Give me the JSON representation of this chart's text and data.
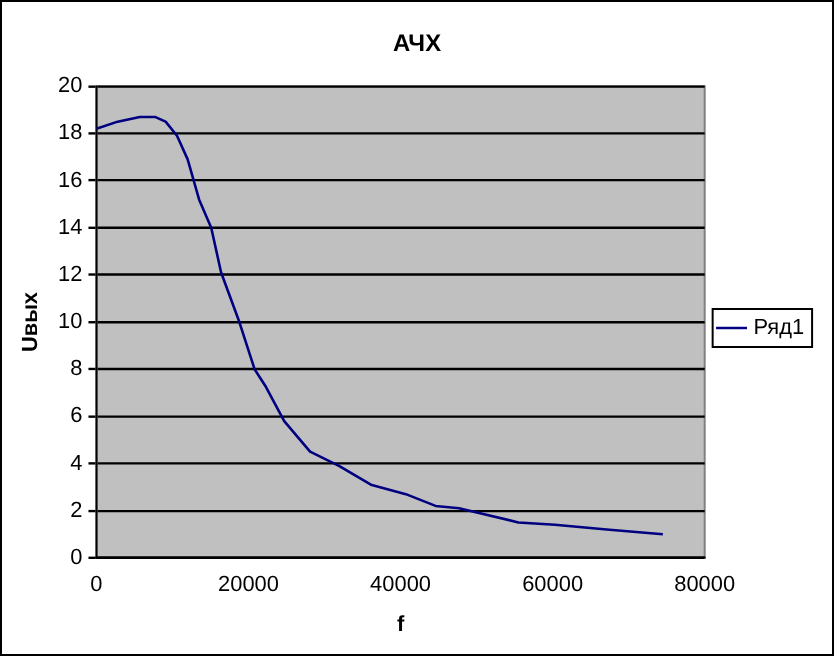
{
  "chart_data": {
    "type": "line",
    "title": "АЧХ",
    "xlabel": "f",
    "ylabel": "Uвых",
    "xlim": [
      0,
      80000
    ],
    "xticks": [
      0,
      20000,
      40000,
      60000,
      80000
    ],
    "ylim": [
      0,
      20
    ],
    "yticks": [
      0,
      2,
      4,
      6,
      8,
      10,
      12,
      14,
      16,
      18,
      20
    ],
    "grid": "y",
    "legend": "right",
    "marker": "none",
    "line_style": "solid",
    "series": [
      {
        "name": "Ряд1",
        "color": "#000080",
        "x": [
          0,
          2800,
          5700,
          7700,
          9100,
          10600,
          12000,
          13500,
          15100,
          16400,
          18800,
          20800,
          22200,
          24700,
          28100,
          31900,
          36100,
          40700,
          44600,
          47700,
          55500,
          60300,
          67100,
          74500
        ],
        "values": [
          18.2,
          18.5,
          18.7,
          18.7,
          18.5,
          17.9,
          16.9,
          15.2,
          14.0,
          12.1,
          10.0,
          8.0,
          7.3,
          5.8,
          4.5,
          3.9,
          3.1,
          2.7,
          2.2,
          2.1,
          1.5,
          1.4,
          1.2,
          1.0
        ]
      }
    ]
  }
}
